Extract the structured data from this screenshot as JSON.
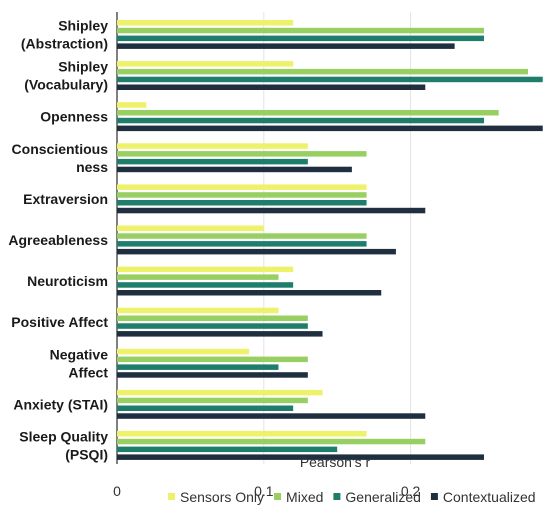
{
  "chart_data": {
    "type": "bar",
    "orientation": "horizontal",
    "title": "",
    "xlabel": "Pearson's r",
    "ylabel": "",
    "xlim": [
      0,
      0.297
    ],
    "xticks": [
      {
        "value": 0,
        "label": "0"
      },
      {
        "value": 0.1,
        "label": "0.1"
      },
      {
        "value": 0.2,
        "label": "0.2"
      }
    ],
    "grid": true,
    "legend_position": "bottom",
    "categories": [
      [
        "Shipley",
        "(Abstraction)"
      ],
      [
        "Shipley",
        "(Vocabulary)"
      ],
      [
        "Openness"
      ],
      [
        "Conscientious",
        "ness"
      ],
      [
        "Extraversion"
      ],
      [
        "Agreeableness"
      ],
      [
        "Neuroticism"
      ],
      [
        "Positive Affect"
      ],
      [
        "Negative",
        "Affect"
      ],
      [
        "Anxiety (STAI)"
      ],
      [
        "Sleep Quality",
        "(PSQI)"
      ]
    ],
    "series": [
      {
        "name": "Sensors Only",
        "color": "#eef26a",
        "values": [
          0.12,
          0.12,
          0.02,
          0.13,
          0.17,
          0.1,
          0.12,
          0.11,
          0.09,
          0.14,
          0.17
        ]
      },
      {
        "name": "Mixed",
        "color": "#98cf62",
        "values": [
          0.25,
          0.28,
          0.26,
          0.17,
          0.17,
          0.17,
          0.11,
          0.13,
          0.13,
          0.13,
          0.21
        ]
      },
      {
        "name": "Generalized",
        "color": "#1f7d6b",
        "values": [
          0.25,
          0.29,
          0.25,
          0.13,
          0.17,
          0.17,
          0.12,
          0.13,
          0.11,
          0.12,
          0.15
        ]
      },
      {
        "name": "Contextualized",
        "color": "#1f2f40",
        "values": [
          0.23,
          0.21,
          0.29,
          0.16,
          0.21,
          0.19,
          0.18,
          0.14,
          0.13,
          0.21,
          0.25
        ]
      }
    ]
  }
}
